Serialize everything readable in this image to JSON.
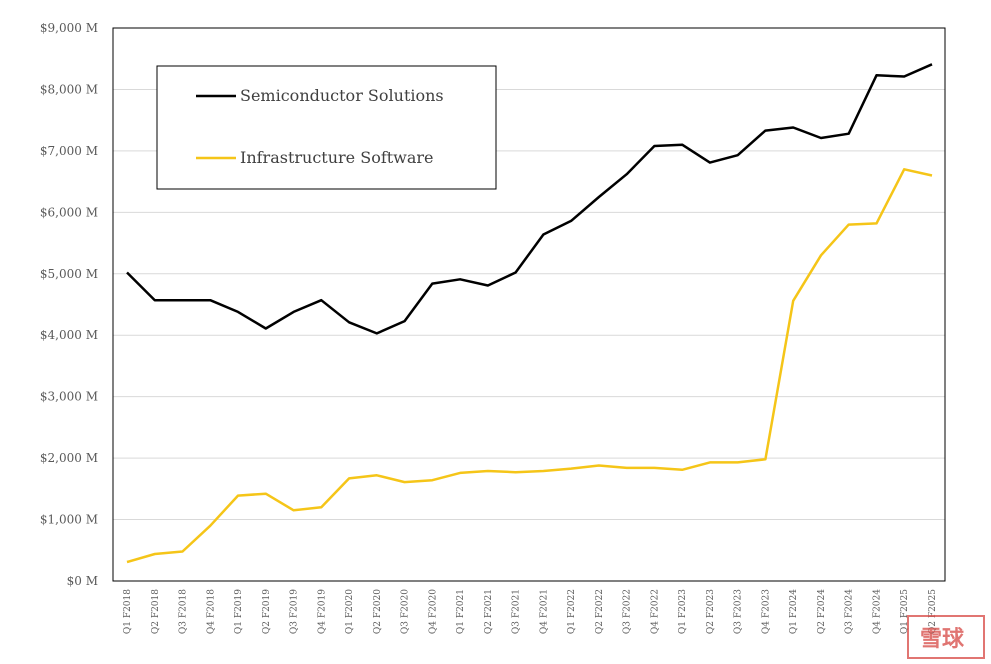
{
  "chart_data": {
    "type": "line",
    "title": "",
    "xlabel": "",
    "ylabel": "",
    "ylim": [
      0,
      9000
    ],
    "yticks": [
      0,
      1000,
      2000,
      3000,
      4000,
      5000,
      6000,
      7000,
      8000,
      9000
    ],
    "ytick_labels": [
      "$0 M",
      "$1,000 M",
      "$2,000 M",
      "$3,000 M",
      "$4,000 M",
      "$5,000 M",
      "$6,000 M",
      "$7,000 M",
      "$8,000 M",
      "$9,000 M"
    ],
    "grid": "horizontal",
    "legend_position": "top-left",
    "categories": [
      "Q1 F2018",
      "Q2 F2018",
      "Q3 F2018",
      "Q4 F2018",
      "Q1 F2019",
      "Q2 F2019",
      "Q3 F2019",
      "Q4 F2019",
      "Q1 F2020",
      "Q2 F2020",
      "Q3 F2020",
      "Q4 F2020",
      "Q1 F2021",
      "Q2 F2021",
      "Q3 F2021",
      "Q4 F2021",
      "Q1 F2022",
      "Q2 F2022",
      "Q3 F2022",
      "Q4 F2022",
      "Q1 F2023",
      "Q2 F2023",
      "Q3 F2023",
      "Q4 F2023",
      "Q1 F2024",
      "Q2 F2024",
      "Q3 F2024",
      "Q4 F2024",
      "Q1 F2025",
      "Q2 F2025"
    ],
    "series": [
      {
        "name": "Semiconductor Solutions",
        "color": "#000000",
        "values": [
          5020,
          4570,
          4570,
          4570,
          4380,
          4110,
          4380,
          4570,
          4210,
          4030,
          4230,
          4840,
          4910,
          4810,
          5020,
          5640,
          5860,
          6250,
          6620,
          7080,
          7100,
          6810,
          6930,
          7330,
          7380,
          7210,
          7280,
          8230,
          8210,
          8410
        ]
      },
      {
        "name": "Infrastructure Software",
        "color": "#f5c518",
        "values": [
          310,
          440,
          480,
          900,
          1390,
          1420,
          1150,
          1200,
          1670,
          1720,
          1610,
          1640,
          1760,
          1790,
          1770,
          1790,
          1830,
          1880,
          1840,
          1840,
          1810,
          1930,
          1930,
          1980,
          4560,
          5300,
          5800,
          5820,
          6700,
          6600
        ]
      }
    ]
  },
  "watermark": {
    "text": "雪球"
  }
}
